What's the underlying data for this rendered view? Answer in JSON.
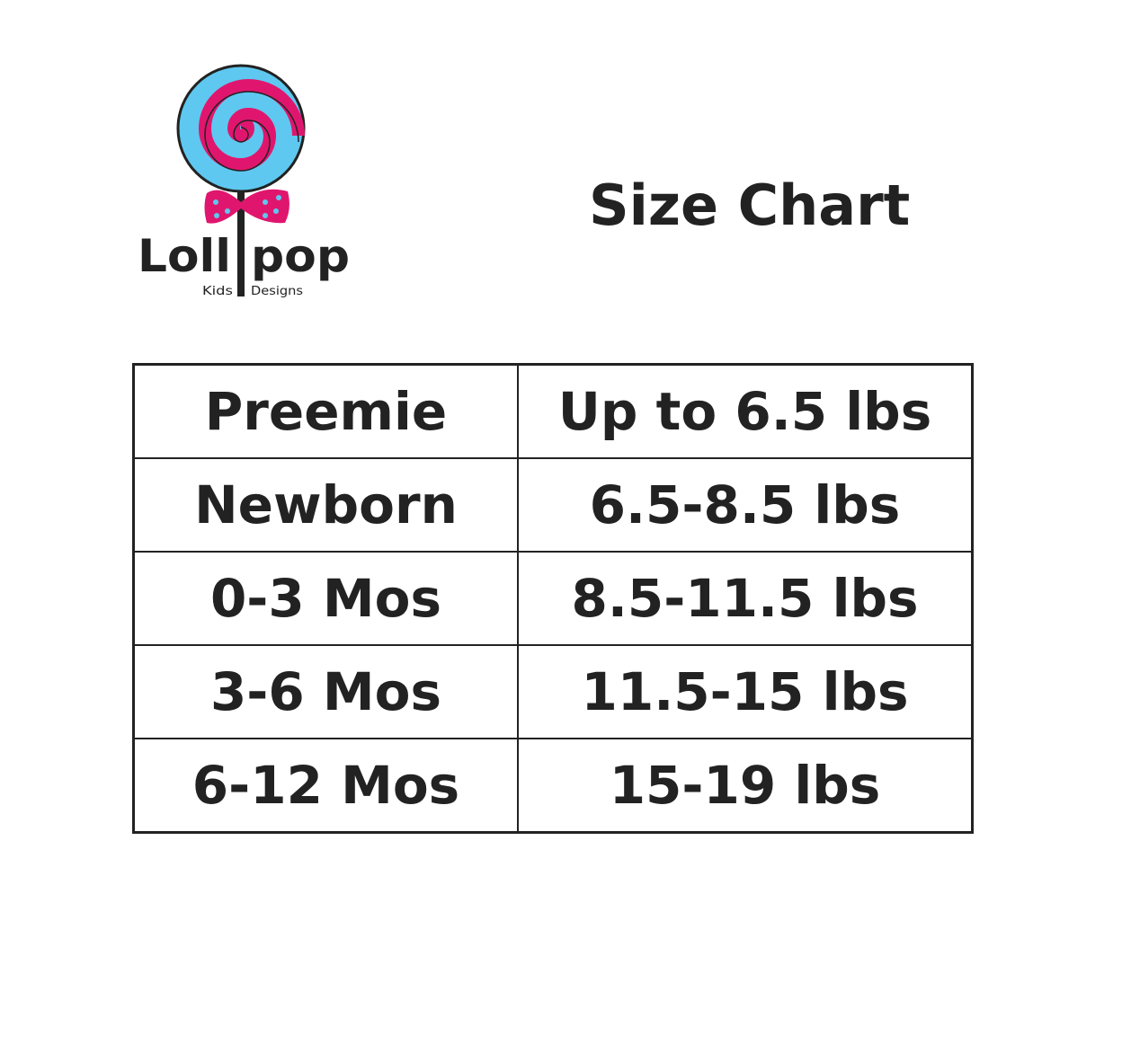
{
  "logo": {
    "brand": "Lollpop",
    "tagline": "Kids Designs",
    "colors": {
      "pink": "#e0166e",
      "blue": "#5ec8f0",
      "outline": "#222222"
    }
  },
  "title": "Size Chart",
  "table": {
    "rows": [
      {
        "size": "Preemie",
        "weight": "Up to 6.5 lbs"
      },
      {
        "size": "Newborn",
        "weight": "6.5-8.5 lbs"
      },
      {
        "size": "0-3 Mos",
        "weight": "8.5-11.5 lbs"
      },
      {
        "size": "3-6 Mos",
        "weight": "11.5-15 lbs"
      },
      {
        "size": "6-12 Mos",
        "weight": "15-19 lbs"
      }
    ]
  }
}
